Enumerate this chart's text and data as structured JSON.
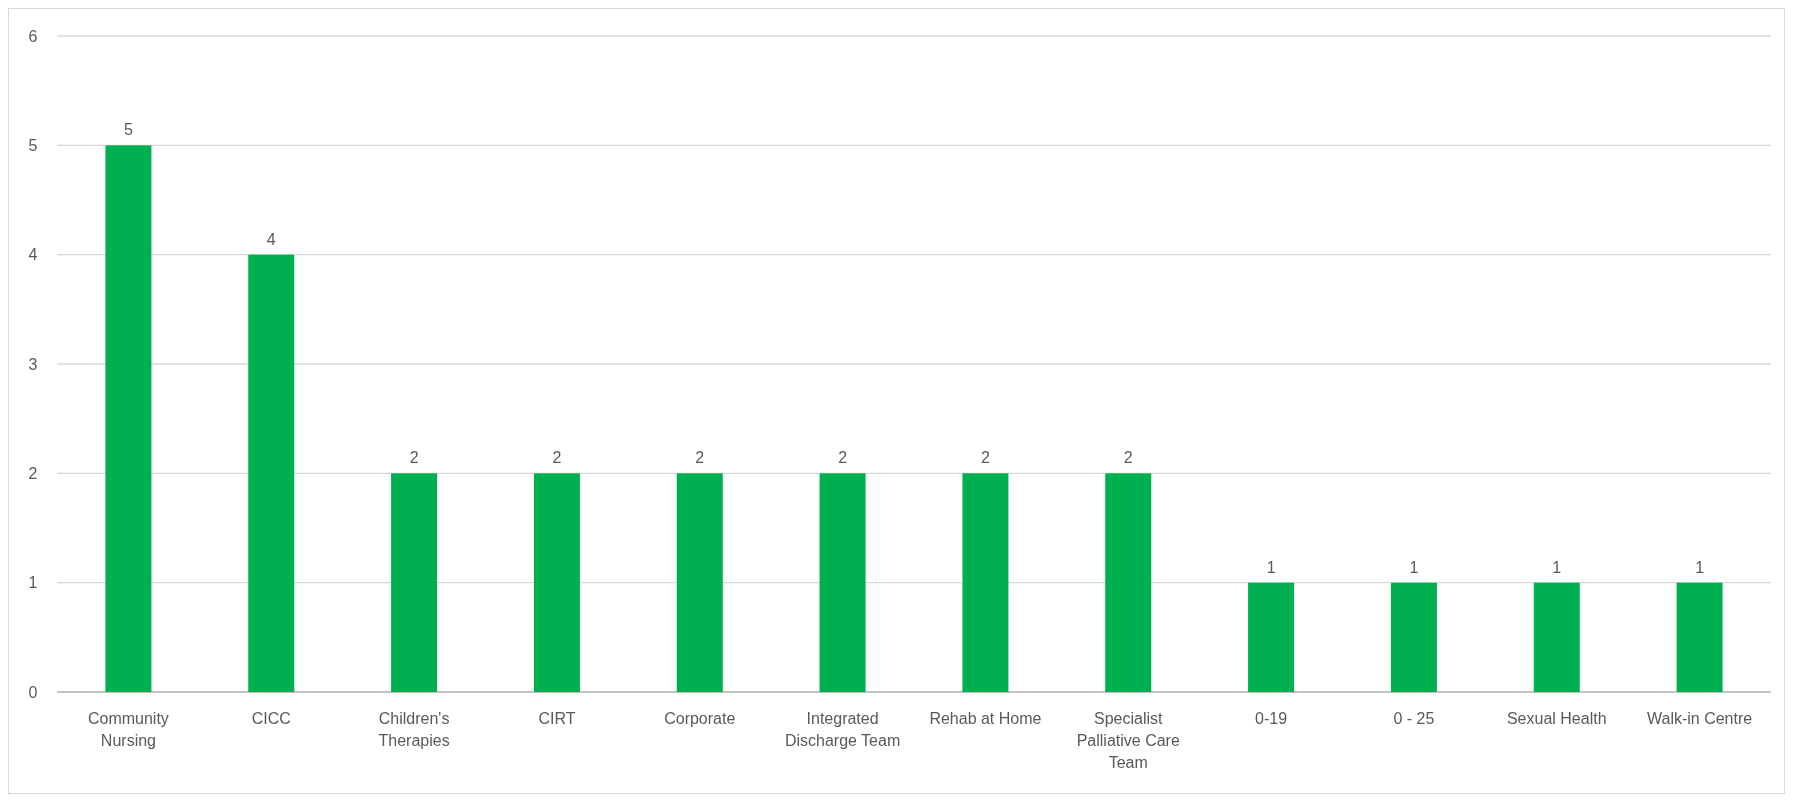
{
  "chart_data": {
    "type": "bar",
    "categories": [
      "Community Nursing",
      "CICC",
      "Children's Therapies",
      "CIRT",
      "Corporate",
      "Integrated Discharge Team",
      "Rehab at Home",
      "Specialist Palliative Care Team",
      "0-19",
      "0 - 25",
      "Sexual Health",
      "Walk-in Centre"
    ],
    "values": [
      5,
      4,
      2,
      2,
      2,
      2,
      2,
      2,
      1,
      1,
      1,
      1
    ],
    "color": "#00b050",
    "ylim": [
      0,
      6
    ],
    "yticks": [
      0,
      1,
      2,
      3,
      4,
      5,
      6
    ],
    "grid": "y",
    "data_labels": true
  }
}
